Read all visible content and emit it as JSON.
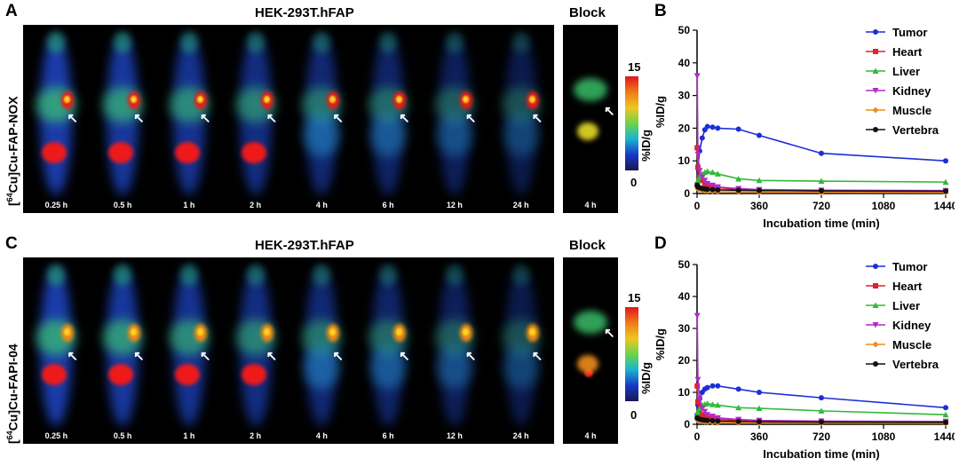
{
  "panel_labels": {
    "A": "A",
    "B": "B",
    "C": "C",
    "D": "D"
  },
  "top": {
    "title": "HEK-293T.hFAP",
    "block_title": "Block",
    "tracer_prefix": "[",
    "tracer_sup": "64",
    "tracer_suffix": "Cu]Cu-FAP-NOX",
    "times": [
      "0.25 h",
      "0.5 h",
      "1 h",
      "2 h",
      "4 h",
      "6 h",
      "12 h",
      "24 h"
    ],
    "block_time": "4 h",
    "cbar_max": "15",
    "cbar_min": "0",
    "cbar_unit": "%ID/g"
  },
  "bottom": {
    "title": "HEK-293T.hFAP",
    "block_title": "Block",
    "tracer_prefix": "[",
    "tracer_sup": "64",
    "tracer_suffix": "Cu]Cu-FAPI-04",
    "times": [
      "0.25 h",
      "0.5 h",
      "1 h",
      "2 h",
      "4 h",
      "6 h",
      "12 h",
      "24 h"
    ],
    "block_time": "4 h",
    "cbar_max": "15",
    "cbar_min": "0",
    "cbar_unit": "%ID/g"
  },
  "colors": {
    "Tumor": "#1c2fd6",
    "Heart": "#e0222a",
    "Liver": "#2fba3a",
    "Kidney": "#b12bc9",
    "Muscle": "#f08c1a",
    "Vertebra": "#111111"
  },
  "chart_data": [
    {
      "type": "line",
      "panel": "B",
      "xlabel": "Incubation time (min)",
      "ylabel": "%ID/g",
      "xlim": [
        0,
        1440
      ],
      "ylim": [
        0,
        50
      ],
      "xticks": [
        0,
        360,
        720,
        1080,
        1440
      ],
      "yticks": [
        0,
        10,
        20,
        30,
        40,
        50
      ],
      "grid": false,
      "legend": "top-right",
      "series": [
        {
          "name": "Tumor",
          "marker": "circle",
          "x": [
            1,
            5,
            15,
            30,
            45,
            60,
            90,
            120,
            240,
            360,
            720,
            1440
          ],
          "y": [
            3,
            8,
            13,
            17,
            19.5,
            20.5,
            20.3,
            20,
            19.7,
            17.8,
            12.3,
            10
          ]
        },
        {
          "name": "Heart",
          "marker": "square",
          "x": [
            1,
            5,
            15,
            30,
            45,
            60,
            90,
            120,
            240,
            360,
            720,
            1440
          ],
          "y": [
            14,
            8,
            5,
            4,
            3,
            2.5,
            2,
            1.8,
            1.2,
            1,
            0.8,
            0.7
          ]
        },
        {
          "name": "Liver",
          "marker": "triangle",
          "x": [
            1,
            5,
            15,
            30,
            45,
            60,
            90,
            120,
            240,
            360,
            720,
            1440
          ],
          "y": [
            3,
            4,
            5,
            6,
            6.5,
            6.8,
            6.5,
            6,
            4.5,
            4,
            3.8,
            3.5
          ]
        },
        {
          "name": "Kidney",
          "marker": "triangle-down",
          "x": [
            1,
            5,
            15,
            30,
            45,
            60,
            90,
            120,
            240,
            360,
            720,
            1440
          ],
          "y": [
            36,
            12,
            7,
            5,
            4,
            3,
            2.5,
            2,
            1.5,
            1.2,
            1,
            0.9
          ]
        },
        {
          "name": "Muscle",
          "marker": "star",
          "x": [
            1,
            5,
            15,
            30,
            45,
            60,
            90,
            120,
            240,
            360,
            720,
            1440
          ],
          "y": [
            2,
            1.5,
            1.2,
            1,
            0.9,
            0.8,
            0.7,
            0.6,
            0.5,
            0.4,
            0.35,
            0.3
          ]
        },
        {
          "name": "Vertebra",
          "marker": "circle",
          "x": [
            1,
            5,
            15,
            30,
            45,
            60,
            90,
            120,
            240,
            360,
            720,
            1440
          ],
          "y": [
            2.5,
            2,
            1.8,
            1.5,
            1.4,
            1.3,
            1.2,
            1.1,
            1,
            0.9,
            0.8,
            0.7
          ]
        }
      ]
    },
    {
      "type": "line",
      "panel": "D",
      "xlabel": "Incubation time (min)",
      "ylabel": "%ID/g",
      "xlim": [
        0,
        1440
      ],
      "ylim": [
        0,
        50
      ],
      "xticks": [
        0,
        360,
        720,
        1080,
        1440
      ],
      "yticks": [
        0,
        10,
        20,
        30,
        40,
        50
      ],
      "grid": false,
      "legend": "top-right",
      "series": [
        {
          "name": "Tumor",
          "marker": "circle",
          "x": [
            1,
            5,
            15,
            30,
            45,
            60,
            90,
            120,
            240,
            360,
            720,
            1440
          ],
          "y": [
            3,
            6,
            8,
            10,
            11,
            11.5,
            12,
            12,
            11,
            10,
            8.3,
            5.2
          ]
        },
        {
          "name": "Heart",
          "marker": "square",
          "x": [
            1,
            5,
            15,
            30,
            45,
            60,
            90,
            120,
            240,
            360,
            720,
            1440
          ],
          "y": [
            12,
            7,
            4,
            3,
            2.5,
            2,
            1.8,
            1.5,
            1.2,
            1,
            0.8,
            0.6
          ]
        },
        {
          "name": "Liver",
          "marker": "triangle",
          "x": [
            1,
            5,
            15,
            30,
            45,
            60,
            90,
            120,
            240,
            360,
            720,
            1440
          ],
          "y": [
            3,
            4,
            5,
            6,
            6.3,
            6.5,
            6.2,
            6,
            5.2,
            5,
            4.2,
            3
          ]
        },
        {
          "name": "Kidney",
          "marker": "triangle-down",
          "x": [
            1,
            5,
            15,
            30,
            45,
            60,
            90,
            120,
            240,
            360,
            720,
            1440
          ],
          "y": [
            34,
            14,
            8,
            5,
            4,
            3,
            2.5,
            2,
            1.5,
            1.2,
            1,
            0.9
          ]
        },
        {
          "name": "Muscle",
          "marker": "star",
          "x": [
            1,
            5,
            15,
            30,
            45,
            60,
            90,
            120,
            240,
            360,
            720,
            1440
          ],
          "y": [
            1.5,
            1.2,
            1,
            0.9,
            0.8,
            0.7,
            0.6,
            0.5,
            0.45,
            0.4,
            0.35,
            0.3
          ]
        },
        {
          "name": "Vertebra",
          "marker": "circle",
          "x": [
            1,
            5,
            15,
            30,
            45,
            60,
            90,
            120,
            240,
            360,
            720,
            1440
          ],
          "y": [
            2,
            1.8,
            1.6,
            1.4,
            1.3,
            1.2,
            1.1,
            1,
            0.9,
            0.8,
            0.7,
            0.6
          ]
        }
      ]
    }
  ]
}
